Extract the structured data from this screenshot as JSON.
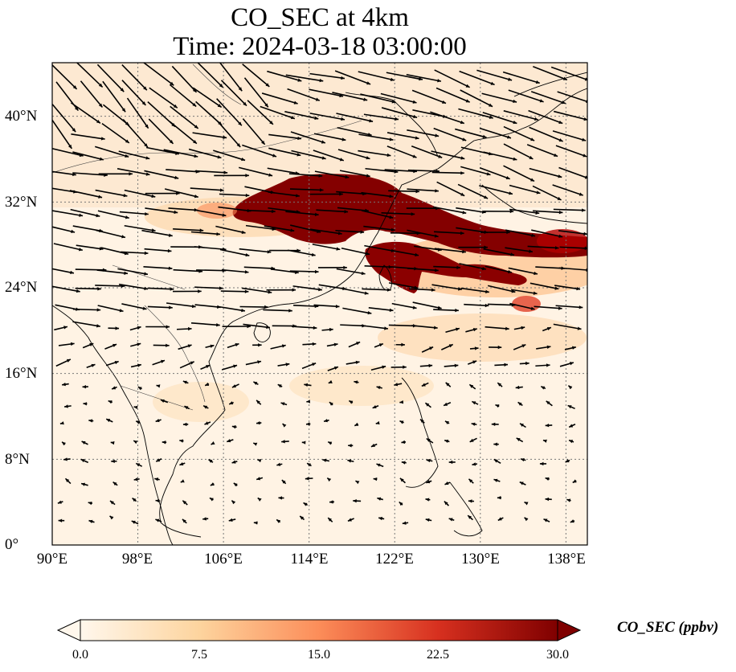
{
  "title": {
    "line1": "CO_SEC at 4km",
    "line2": "Time: 2024-03-18 03:00:00"
  },
  "map": {
    "extent": {
      "lon_min": 90,
      "lon_max": 140,
      "lat_min": 0,
      "lat_max": 45
    },
    "lat_ticks": [
      "0°",
      "8°N",
      "16°N",
      "24°N",
      "32°N",
      "40°N"
    ],
    "lon_ticks": [
      "90°E",
      "98°E",
      "106°E",
      "114°E",
      "122°E",
      "130°E",
      "138°E"
    ],
    "gridlines": "dotted",
    "field": "CO_SEC",
    "overlay": "wind vectors"
  },
  "colorbar": {
    "label": "CO_SEC (ppbv)",
    "ticks": [
      "0.0",
      "7.5",
      "15.0",
      "22.5",
      "30.0"
    ],
    "range": [
      0,
      30
    ],
    "colormap": "OrRd",
    "colors": [
      "#fff7ec",
      "#fdd49e",
      "#fc8d59",
      "#d7301f",
      "#7f0000"
    ]
  }
}
